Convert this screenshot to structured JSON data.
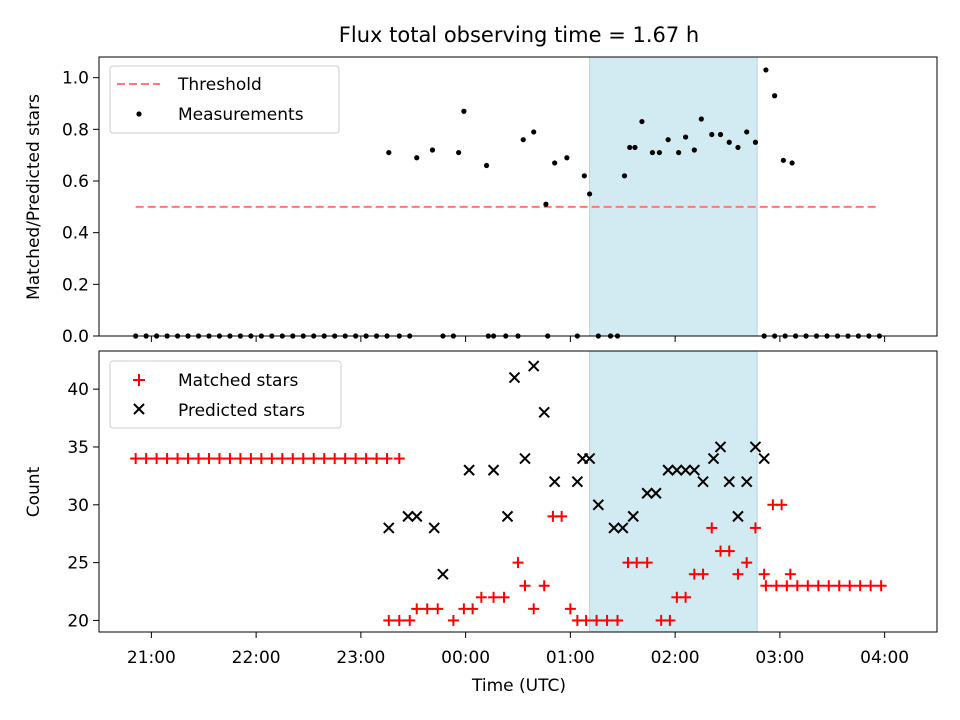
{
  "chart_data": {
    "title": "Flux total observing time = 1.67 h",
    "shaded_span": {
      "start": "01:11",
      "end": "02:47",
      "color": "#add8e6"
    },
    "xlabel": "Time (UTC)",
    "x_ticks": [
      "21:00",
      "22:00",
      "23:00",
      "00:00",
      "01:00",
      "02:00",
      "03:00",
      "04:00"
    ],
    "xlim": [
      "20:30",
      "04:30"
    ],
    "panels": [
      {
        "type": "scatter",
        "ylabel": "Matched/Predicted stars",
        "ylim": [
          0,
          1.08
        ],
        "y_ticks": [
          "0.0",
          "0.2",
          "0.4",
          "0.6",
          "0.8",
          "1.0"
        ],
        "legend": {
          "position": "upper-left"
        },
        "series": [
          {
            "name": "Threshold",
            "style": "dashed-line",
            "color": "#ff7777",
            "points": [
              [
                "20:51",
                0.5
              ],
              [
                "03:55",
                0.5
              ]
            ]
          },
          {
            "name": "Measurements",
            "style": "dot",
            "color": "#000000",
            "points": [
              [
                "20:51",
                0
              ],
              [
                "20:57",
                0
              ],
              [
                "21:03",
                0
              ],
              [
                "21:09",
                0
              ],
              [
                "21:15",
                0
              ],
              [
                "21:21",
                0
              ],
              [
                "21:27",
                0
              ],
              [
                "21:33",
                0
              ],
              [
                "21:39",
                0
              ],
              [
                "21:45",
                0
              ],
              [
                "21:51",
                0
              ],
              [
                "21:57",
                0
              ],
              [
                "22:03",
                0
              ],
              [
                "22:09",
                0
              ],
              [
                "22:15",
                0
              ],
              [
                "22:21",
                0
              ],
              [
                "22:27",
                0
              ],
              [
                "22:33",
                0
              ],
              [
                "22:39",
                0
              ],
              [
                "22:45",
                0
              ],
              [
                "22:51",
                0
              ],
              [
                "22:57",
                0
              ],
              [
                "23:03",
                0
              ],
              [
                "23:09",
                0
              ],
              [
                "23:15",
                0
              ],
              [
                "23:22",
                0
              ],
              [
                "23:16",
                0.71
              ],
              [
                "23:28",
                0
              ],
              [
                "23:32",
                0.69
              ],
              [
                "23:41",
                0.72
              ],
              [
                "23:47",
                0
              ],
              [
                "23:53",
                0
              ],
              [
                "23:56",
                0.71
              ],
              [
                "23:59",
                0.87
              ],
              [
                "00:12",
                0.66
              ],
              [
                "00:13",
                0
              ],
              [
                "00:16",
                0
              ],
              [
                "00:23",
                0
              ],
              [
                "00:30",
                0
              ],
              [
                "00:33",
                0.76
              ],
              [
                "00:39",
                0.79
              ],
              [
                "00:47",
                0
              ],
              [
                "00:51",
                0.67
              ],
              [
                "00:46",
                0.51
              ],
              [
                "00:58",
                0.69
              ],
              [
                "01:04",
                0
              ],
              [
                "01:11",
                0.55
              ],
              [
                "01:08",
                0.62
              ],
              [
                "01:16",
                0
              ],
              [
                "01:23",
                0
              ],
              [
                "01:27",
                0
              ],
              [
                "01:31",
                0.62
              ],
              [
                "01:34",
                0.73
              ],
              [
                "01:37",
                0.73
              ],
              [
                "01:41",
                0.83
              ],
              [
                "01:47",
                0.71
              ],
              [
                "01:51",
                0.71
              ],
              [
                "01:56",
                0.76
              ],
              [
                "02:02",
                0.71
              ],
              [
                "02:06",
                0.77
              ],
              [
                "02:11",
                0.72
              ],
              [
                "02:15",
                0.84
              ],
              [
                "02:21",
                0.78
              ],
              [
                "02:26",
                0.78
              ],
              [
                "02:31",
                0.75
              ],
              [
                "02:36",
                0.73
              ],
              [
                "02:41",
                0.79
              ],
              [
                "02:46",
                0.75
              ],
              [
                "02:52",
                1.03
              ],
              [
                "02:57",
                0.93
              ],
              [
                "03:02",
                0.68
              ],
              [
                "03:07",
                0.67
              ],
              [
                "02:51",
                0
              ],
              [
                "02:57",
                0
              ],
              [
                "03:03",
                0
              ],
              [
                "03:09",
                0
              ],
              [
                "03:15",
                0
              ],
              [
                "03:21",
                0
              ],
              [
                "03:27",
                0
              ],
              [
                "03:33",
                0
              ],
              [
                "03:39",
                0
              ],
              [
                "03:45",
                0
              ],
              [
                "03:51",
                0
              ],
              [
                "03:57",
                0
              ]
            ]
          }
        ]
      },
      {
        "type": "scatter",
        "ylabel": "Count",
        "ylim": [
          19,
          43.3
        ],
        "y_ticks": [
          "20",
          "25",
          "30",
          "35",
          "40"
        ],
        "legend": {
          "position": "upper-left"
        },
        "series": [
          {
            "name": "Matched stars",
            "style": "plus",
            "color": "#ff0000",
            "points": [
              [
                "20:51",
                34
              ],
              [
                "20:57",
                34
              ],
              [
                "21:03",
                34
              ],
              [
                "21:09",
                34
              ],
              [
                "21:15",
                34
              ],
              [
                "21:21",
                34
              ],
              [
                "21:27",
                34
              ],
              [
                "21:33",
                34
              ],
              [
                "21:39",
                34
              ],
              [
                "21:45",
                34
              ],
              [
                "21:51",
                34
              ],
              [
                "21:57",
                34
              ],
              [
                "22:03",
                34
              ],
              [
                "22:09",
                34
              ],
              [
                "22:15",
                34
              ],
              [
                "22:21",
                34
              ],
              [
                "22:27",
                34
              ],
              [
                "22:33",
                34
              ],
              [
                "22:39",
                34
              ],
              [
                "22:45",
                34
              ],
              [
                "22:51",
                34
              ],
              [
                "22:57",
                34
              ],
              [
                "23:03",
                34
              ],
              [
                "23:09",
                34
              ],
              [
                "23:15",
                34
              ],
              [
                "23:22",
                34
              ],
              [
                "23:16",
                20
              ],
              [
                "23:22",
                20
              ],
              [
                "23:28",
                20
              ],
              [
                "23:32",
                21
              ],
              [
                "23:38",
                21
              ],
              [
                "23:44",
                21
              ],
              [
                "23:53",
                20
              ],
              [
                "23:59",
                21
              ],
              [
                "00:04",
                21
              ],
              [
                "00:09",
                22
              ],
              [
                "00:16",
                22
              ],
              [
                "00:22",
                22
              ],
              [
                "00:30",
                25
              ],
              [
                "00:34",
                23
              ],
              [
                "00:39",
                21
              ],
              [
                "00:45",
                23
              ],
              [
                "00:50",
                29
              ],
              [
                "00:55",
                29
              ],
              [
                "01:00",
                21
              ],
              [
                "01:04",
                20
              ],
              [
                "01:09",
                20
              ],
              [
                "01:15",
                20
              ],
              [
                "01:21",
                20
              ],
              [
                "01:27",
                20
              ],
              [
                "01:33",
                25
              ],
              [
                "01:38",
                25
              ],
              [
                "01:44",
                25
              ],
              [
                "01:52",
                20
              ],
              [
                "01:57",
                20
              ],
              [
                "02:01",
                22
              ],
              [
                "02:06",
                22
              ],
              [
                "02:11",
                24
              ],
              [
                "02:16",
                24
              ],
              [
                "02:21",
                28
              ],
              [
                "02:26",
                26
              ],
              [
                "02:31",
                26
              ],
              [
                "02:36",
                24
              ],
              [
                "02:41",
                25
              ],
              [
                "02:46",
                28
              ],
              [
                "02:51",
                24
              ],
              [
                "02:56",
                30
              ],
              [
                "03:01",
                30
              ],
              [
                "03:06",
                24
              ],
              [
                "02:52",
                23
              ],
              [
                "02:58",
                23
              ],
              [
                "03:04",
                23
              ],
              [
                "03:10",
                23
              ],
              [
                "03:16",
                23
              ],
              [
                "03:22",
                23
              ],
              [
                "03:28",
                23
              ],
              [
                "03:34",
                23
              ],
              [
                "03:40",
                23
              ],
              [
                "03:46",
                23
              ],
              [
                "03:52",
                23
              ],
              [
                "03:58",
                23
              ]
            ]
          },
          {
            "name": "Predicted stars",
            "style": "cross",
            "color": "#000000",
            "points": [
              [
                "23:16",
                28
              ],
              [
                "23:27",
                29
              ],
              [
                "23:32",
                29
              ],
              [
                "23:42",
                28
              ],
              [
                "23:47",
                24
              ],
              [
                "00:02",
                33
              ],
              [
                "00:16",
                33
              ],
              [
                "00:24",
                29
              ],
              [
                "00:28",
                41
              ],
              [
                "00:39",
                42
              ],
              [
                "00:34",
                34
              ],
              [
                "00:45",
                38
              ],
              [
                "00:51",
                32
              ],
              [
                "01:04",
                32
              ],
              [
                "01:07",
                34
              ],
              [
                "01:11",
                34
              ],
              [
                "01:16",
                30
              ],
              [
                "01:25",
                28
              ],
              [
                "01:30",
                28
              ],
              [
                "01:36",
                29
              ],
              [
                "01:44",
                31
              ],
              [
                "01:49",
                31
              ],
              [
                "01:56",
                33
              ],
              [
                "02:01",
                33
              ],
              [
                "02:06",
                33
              ],
              [
                "02:11",
                33
              ],
              [
                "02:16",
                32
              ],
              [
                "02:22",
                34
              ],
              [
                "02:26",
                35
              ],
              [
                "02:31",
                32
              ],
              [
                "02:36",
                29
              ],
              [
                "02:41",
                32
              ],
              [
                "02:46",
                35
              ],
              [
                "02:51",
                34
              ]
            ]
          }
        ]
      }
    ]
  }
}
